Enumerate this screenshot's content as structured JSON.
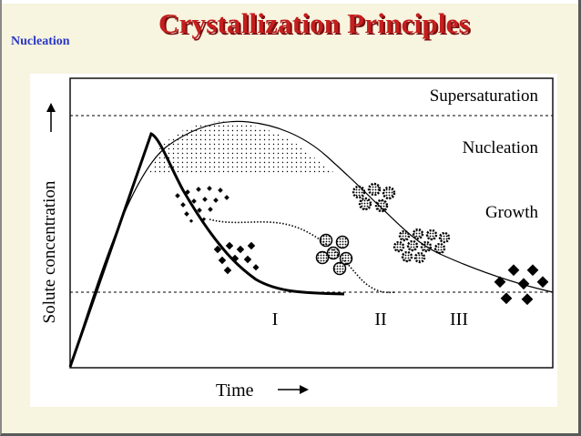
{
  "slide": {
    "section_label": "Nucleation",
    "title": "Crystallization Principles"
  },
  "colors": {
    "slide_background": "#f7f4df",
    "title_red": "#c41e1e",
    "section_label_blue": "#2a38c4",
    "figure_background": "#ffffff"
  },
  "diagram": {
    "zone_labels": {
      "supersaturation": "Supersaturation",
      "nucleation": "Nucleation",
      "growth": "Growth"
    },
    "y_axis_label": "Solute concentration",
    "x_axis_label": "Time",
    "regions": [
      "I",
      "II",
      "III"
    ],
    "arrow_glyph": "→"
  }
}
